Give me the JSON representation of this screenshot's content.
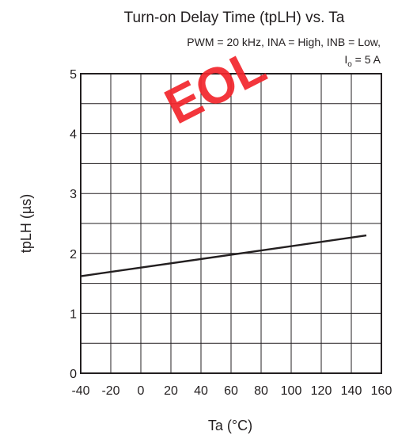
{
  "chart_data": {
    "type": "line",
    "title": "Turn-on Delay Time (tpLH) vs. Ta",
    "subtitle_line1": "PWM = 20 kHz, INA = High, INB = Low,",
    "subtitle_line2_prefix": "I",
    "subtitle_line2_sub": "o",
    "subtitle_line2_suffix": " = 5 A",
    "xlabel": "Ta  (°C)",
    "ylabel": "tpLH  (µs)",
    "xlim": [
      -40,
      160
    ],
    "ylim": [
      0,
      5
    ],
    "xticks": [
      "-40",
      "-20",
      "0",
      "20",
      "40",
      "60",
      "80",
      "100",
      "120",
      "140",
      "160"
    ],
    "yticks": [
      "0",
      "1",
      "2",
      "3",
      "4",
      "5"
    ],
    "grid": true,
    "series": [
      {
        "x": [
          -40,
          150
        ],
        "y": [
          1.62,
          2.3
        ],
        "color": "#231f20"
      }
    ],
    "watermark": "EOL"
  }
}
